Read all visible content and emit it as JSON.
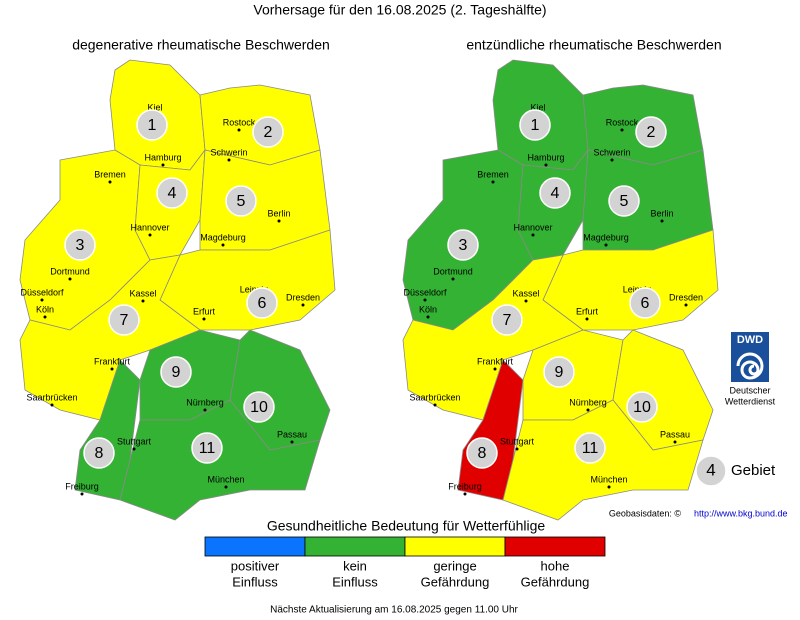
{
  "title": "Vorhersage für den 16.08.2025 (2. Tageshälfte)",
  "maps": [
    {
      "title": "degenerative rheumatische Beschwerden",
      "regions": [
        {
          "id": "1",
          "color": "#ffff00"
        },
        {
          "id": "2",
          "color": "#ffff00"
        },
        {
          "id": "3",
          "color": "#ffff00"
        },
        {
          "id": "4",
          "color": "#ffff00"
        },
        {
          "id": "5",
          "color": "#ffff00"
        },
        {
          "id": "6",
          "color": "#ffff00"
        },
        {
          "id": "7",
          "color": "#ffff00"
        },
        {
          "id": "8",
          "color": "#33b233"
        },
        {
          "id": "9",
          "color": "#33b233"
        },
        {
          "id": "10",
          "color": "#33b233"
        },
        {
          "id": "11",
          "color": "#33b233"
        }
      ]
    },
    {
      "title": "entzündliche rheumatische Beschwerden",
      "regions": [
        {
          "id": "1",
          "color": "#33b233"
        },
        {
          "id": "2",
          "color": "#33b233"
        },
        {
          "id": "3",
          "color": "#33b233"
        },
        {
          "id": "4",
          "color": "#33b233"
        },
        {
          "id": "5",
          "color": "#33b233"
        },
        {
          "id": "6",
          "color": "#ffff00"
        },
        {
          "id": "7",
          "color": "#ffff00"
        },
        {
          "id": "8",
          "color": "#e00000"
        },
        {
          "id": "9",
          "color": "#ffff00"
        },
        {
          "id": "10",
          "color": "#ffff00"
        },
        {
          "id": "11",
          "color": "#ffff00"
        }
      ]
    }
  ],
  "cities": [
    "Kiel",
    "Rostock",
    "Hamburg",
    "Schwerin",
    "Bremen",
    "Hannover",
    "Berlin",
    "Magdeburg",
    "Dortmund",
    "Düsseldorf",
    "Köln",
    "Kassel",
    "Leipzig",
    "Dresden",
    "Erfurt",
    "Frankfurt",
    "Saarbrücken",
    "Nürnberg",
    "Stuttgart",
    "Passau",
    "Freiburg",
    "München"
  ],
  "logo": {
    "abbr": "DWD",
    "lines": [
      "Deutscher",
      "Wetterdienst"
    ]
  },
  "region_key": {
    "id": "4",
    "label": "Gebiet"
  },
  "source": {
    "label": "Geobasisdaten: ©",
    "url": "http://www.bkg.bund.de"
  },
  "legend": {
    "title": "Gesundheitliche Bedeutung für Wetterfühlige",
    "items": [
      {
        "lines": [
          "positiver",
          "Einfluss"
        ],
        "color": "#0a74ff"
      },
      {
        "lines": [
          "kein",
          "Einfluss"
        ],
        "color": "#33b233"
      },
      {
        "lines": [
          "geringe",
          "Gefährdung"
        ],
        "color": "#ffff00"
      },
      {
        "lines": [
          "hohe",
          "Gefährdung"
        ],
        "color": "#e00000"
      }
    ]
  },
  "footer": "Nächste Aktualisierung am 16.08.2025 gegen 11.00 Uhr"
}
